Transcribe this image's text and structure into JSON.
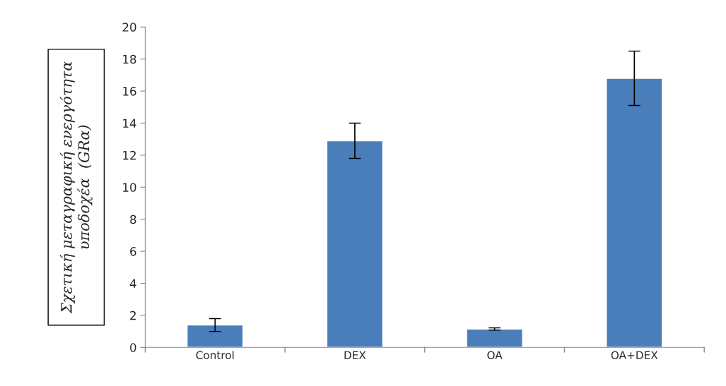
{
  "chart_data": {
    "type": "bar",
    "ylabel": "Σχετική μεταγραφική ενεργότητα\nυποδοχέα  (GRα)",
    "categories": [
      "Control",
      "DEX",
      "OA",
      "OA+DEX"
    ],
    "values": [
      1.4,
      12.9,
      1.15,
      16.8
    ],
    "errors": [
      0.4,
      1.1,
      0.07,
      1.7
    ],
    "color": "#4a7ebb",
    "ylim": [
      0,
      20
    ],
    "yticks": [
      0,
      2,
      4,
      6,
      8,
      10,
      12,
      14,
      16,
      18,
      20
    ],
    "grid": false,
    "legend": false
  }
}
